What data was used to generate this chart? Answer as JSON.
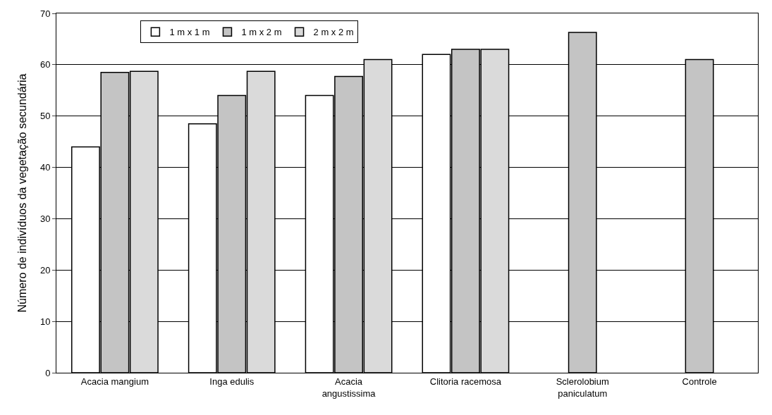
{
  "chart_data": {
    "type": "bar",
    "ylabel": "Número de indivíduos da vegetação secundária",
    "categories": [
      "Acacia mangium",
      "Inga edulis",
      "Acacia\nangustissima",
      "Clitoria racemosa",
      "Sclerolobium\npaniculatum",
      "Controle"
    ],
    "series": [
      {
        "name": "1 m x 1 m",
        "color": "#ffffff",
        "values": [
          44,
          48.5,
          54,
          62,
          null,
          null
        ]
      },
      {
        "name": "1 m x 2 m",
        "color": "#c4c4c4",
        "values": [
          58.5,
          54,
          57.7,
          63,
          66.3,
          61
        ]
      },
      {
        "name": "2 m x 2 m",
        "color": "#dadada",
        "values": [
          58.7,
          58.7,
          61,
          63,
          null,
          null
        ]
      }
    ],
    "ylim": [
      0,
      70
    ],
    "yticks": [
      0,
      10,
      20,
      30,
      40,
      50,
      60,
      70
    ],
    "grid": "y",
    "legend": "top left"
  }
}
